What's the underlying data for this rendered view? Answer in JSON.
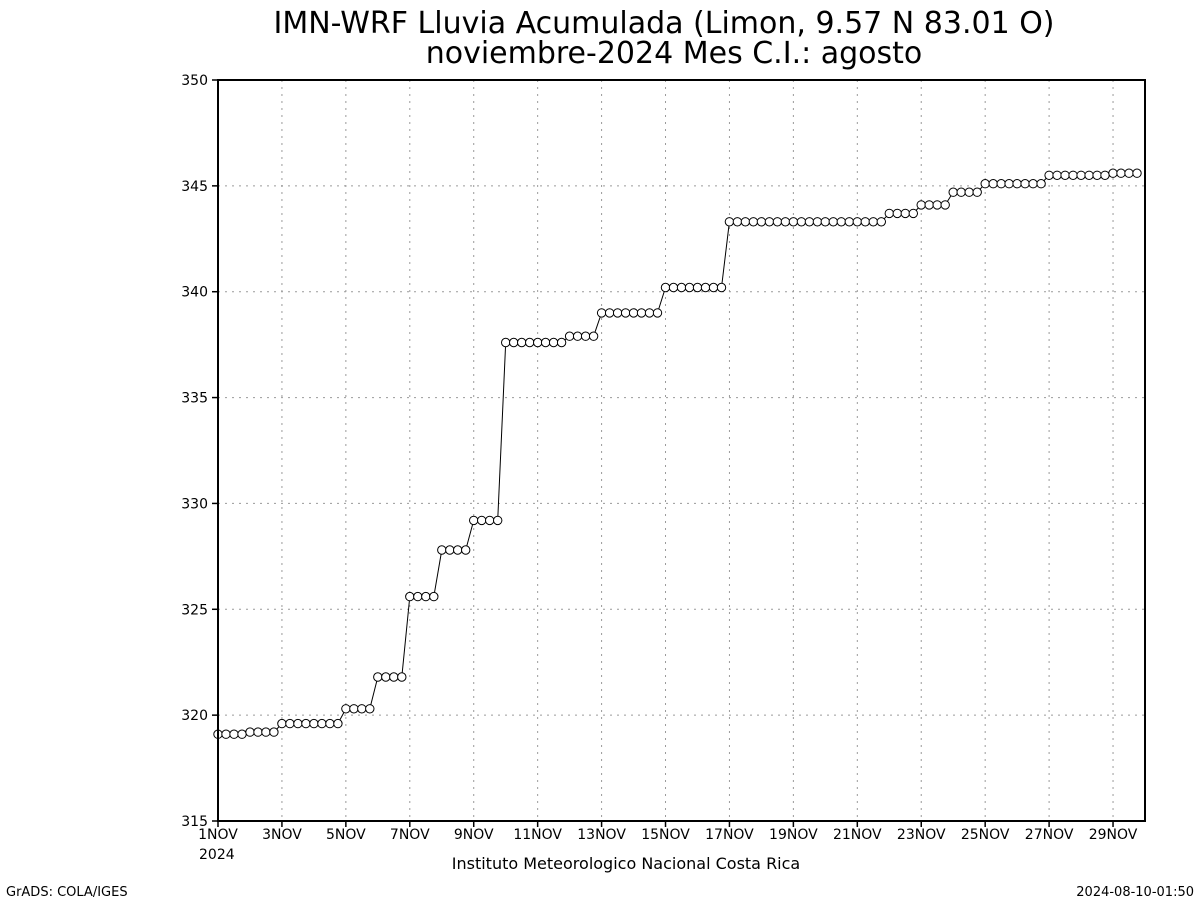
{
  "chart_data": {
    "type": "line",
    "title_line1": "IMN-WRF  Lluvia Acumulada  (Limon, 9.57  N 83.01  O)",
    "title_line2": "noviembre-2024 Mes C.I.: agosto",
    "xlabel": "",
    "ylabel": "",
    "ylim": [
      315,
      350
    ],
    "yticks": [
      315,
      320,
      325,
      330,
      335,
      340,
      345,
      350
    ],
    "xlim": [
      1,
      30
    ],
    "xticks": [
      {
        "day": 1,
        "label": "1NOV"
      },
      {
        "day": 3,
        "label": "3NOV"
      },
      {
        "day": 5,
        "label": "5NOV"
      },
      {
        "day": 7,
        "label": "7NOV"
      },
      {
        "day": 9,
        "label": "9NOV"
      },
      {
        "day": 11,
        "label": "11NOV"
      },
      {
        "day": 13,
        "label": "13NOV"
      },
      {
        "day": 15,
        "label": "15NOV"
      },
      {
        "day": 17,
        "label": "17NOV"
      },
      {
        "day": 19,
        "label": "19NOV"
      },
      {
        "day": 21,
        "label": "21NOV"
      },
      {
        "day": 23,
        "label": "23NOV"
      },
      {
        "day": 25,
        "label": "25NOV"
      },
      {
        "day": 27,
        "label": "27NOV"
      },
      {
        "day": 29,
        "label": "29NOV"
      }
    ],
    "xtick_year": "2024",
    "grid": true,
    "marker": "open-circle",
    "line_color": "#000000",
    "series": [
      {
        "time_step_days": 0.25,
        "values": [
          319.1,
          319.1,
          319.1,
          319.1,
          319.2,
          319.2,
          319.2,
          319.2,
          319.6,
          319.6,
          319.6,
          319.6,
          319.6,
          319.6,
          319.6,
          319.6,
          320.3,
          320.3,
          320.3,
          320.3,
          321.8,
          321.8,
          321.8,
          321.8,
          325.6,
          325.6,
          325.6,
          325.6,
          327.8,
          327.8,
          327.8,
          327.8,
          329.2,
          329.2,
          329.2,
          329.2,
          337.6,
          337.6,
          337.6,
          337.6,
          337.6,
          337.6,
          337.6,
          337.6,
          337.9,
          337.9,
          337.9,
          337.9,
          339.0,
          339.0,
          339.0,
          339.0,
          339.0,
          339.0,
          339.0,
          339.0,
          340.2,
          340.2,
          340.2,
          340.2,
          340.2,
          340.2,
          340.2,
          340.2,
          343.3,
          343.3,
          343.3,
          343.3,
          343.3,
          343.3,
          343.3,
          343.3,
          343.3,
          343.3,
          343.3,
          343.3,
          343.3,
          343.3,
          343.3,
          343.3,
          343.3,
          343.3,
          343.3,
          343.3,
          343.7,
          343.7,
          343.7,
          343.7,
          344.1,
          344.1,
          344.1,
          344.1,
          344.7,
          344.7,
          344.7,
          344.7,
          345.1,
          345.1,
          345.1,
          345.1,
          345.1,
          345.1,
          345.1,
          345.1,
          345.5,
          345.5,
          345.5,
          345.5,
          345.5,
          345.5,
          345.5,
          345.5,
          345.6,
          345.6,
          345.6,
          345.6
        ]
      }
    ]
  },
  "credit": "Instituto Meteorologico Nacional Costa Rica",
  "footer_left": "GrADS: COLA/IGES",
  "footer_right": "2024-08-10-01:50"
}
